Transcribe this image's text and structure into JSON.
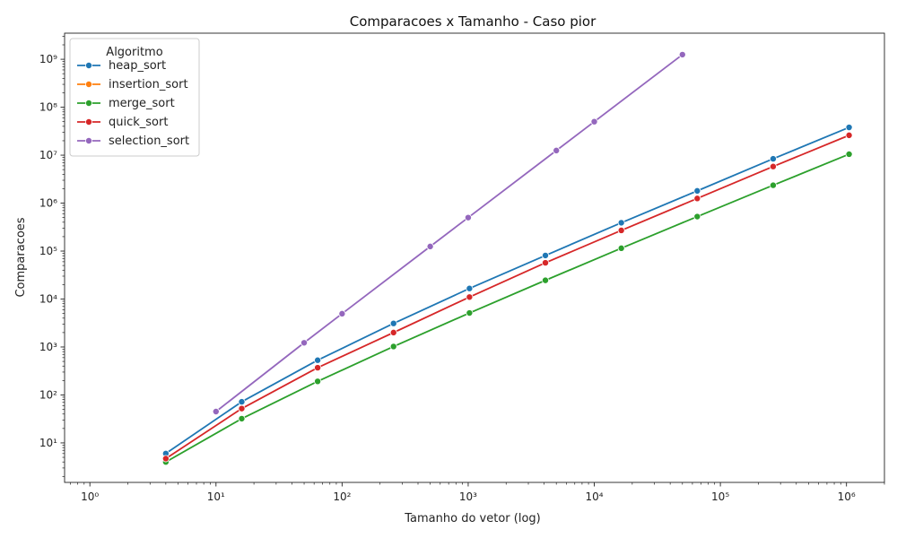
{
  "chart_data": {
    "type": "line",
    "title": "Comparacoes x Tamanho - Caso pior",
    "xlabel": "Tamanho do vetor (log)",
    "ylabel": "Comparacoes",
    "xscale": "log",
    "yscale": "log",
    "xlim": [
      0.63,
      2000000
    ],
    "ylim": [
      1.5,
      3500000000
    ],
    "x_ticks": [
      1,
      10,
      100,
      1000,
      10000,
      100000,
      1000000
    ],
    "y_ticks": [
      10,
      100,
      1000,
      10000,
      100000,
      1000000,
      10000000,
      100000000,
      1000000000
    ],
    "grid": false,
    "legend": {
      "title": "Algoritmo",
      "position": "top-left"
    },
    "series": [
      {
        "name": "heap_sort",
        "color": "#1f77b4",
        "x": [
          4,
          16,
          64,
          256,
          1024,
          4096,
          16384,
          65536,
          262144,
          1048576
        ],
        "y": [
          6,
          72,
          530,
          3100,
          16600,
          81000,
          390000,
          1800000,
          8400000,
          38000000
        ]
      },
      {
        "name": "insertion_sort",
        "color": "#ff7f0e",
        "x": [
          4
        ],
        "y": [
          4
        ]
      },
      {
        "name": "merge_sort",
        "color": "#2ca02c",
        "x": [
          4,
          16,
          64,
          256,
          1024,
          4096,
          16384,
          65536,
          262144,
          1048576
        ],
        "y": [
          4,
          32,
          192,
          1024,
          5120,
          24576,
          114688,
          524288,
          2359296,
          10485760
        ]
      },
      {
        "name": "quick_sort",
        "color": "#d62728",
        "x": [
          4,
          16,
          64,
          256,
          1024,
          4096,
          16384,
          65536,
          262144,
          1048576
        ],
        "y": [
          4.7,
          52,
          370,
          2000,
          11000,
          57000,
          270000,
          1250000,
          5800000,
          26000000
        ]
      },
      {
        "name": "selection_sort",
        "color": "#9467bd",
        "x": [
          10,
          50,
          100,
          500,
          1000,
          5000,
          10000,
          50000
        ],
        "y": [
          45,
          1225,
          4950,
          124750,
          499500,
          12497500,
          49995000,
          1249975000
        ]
      }
    ]
  }
}
